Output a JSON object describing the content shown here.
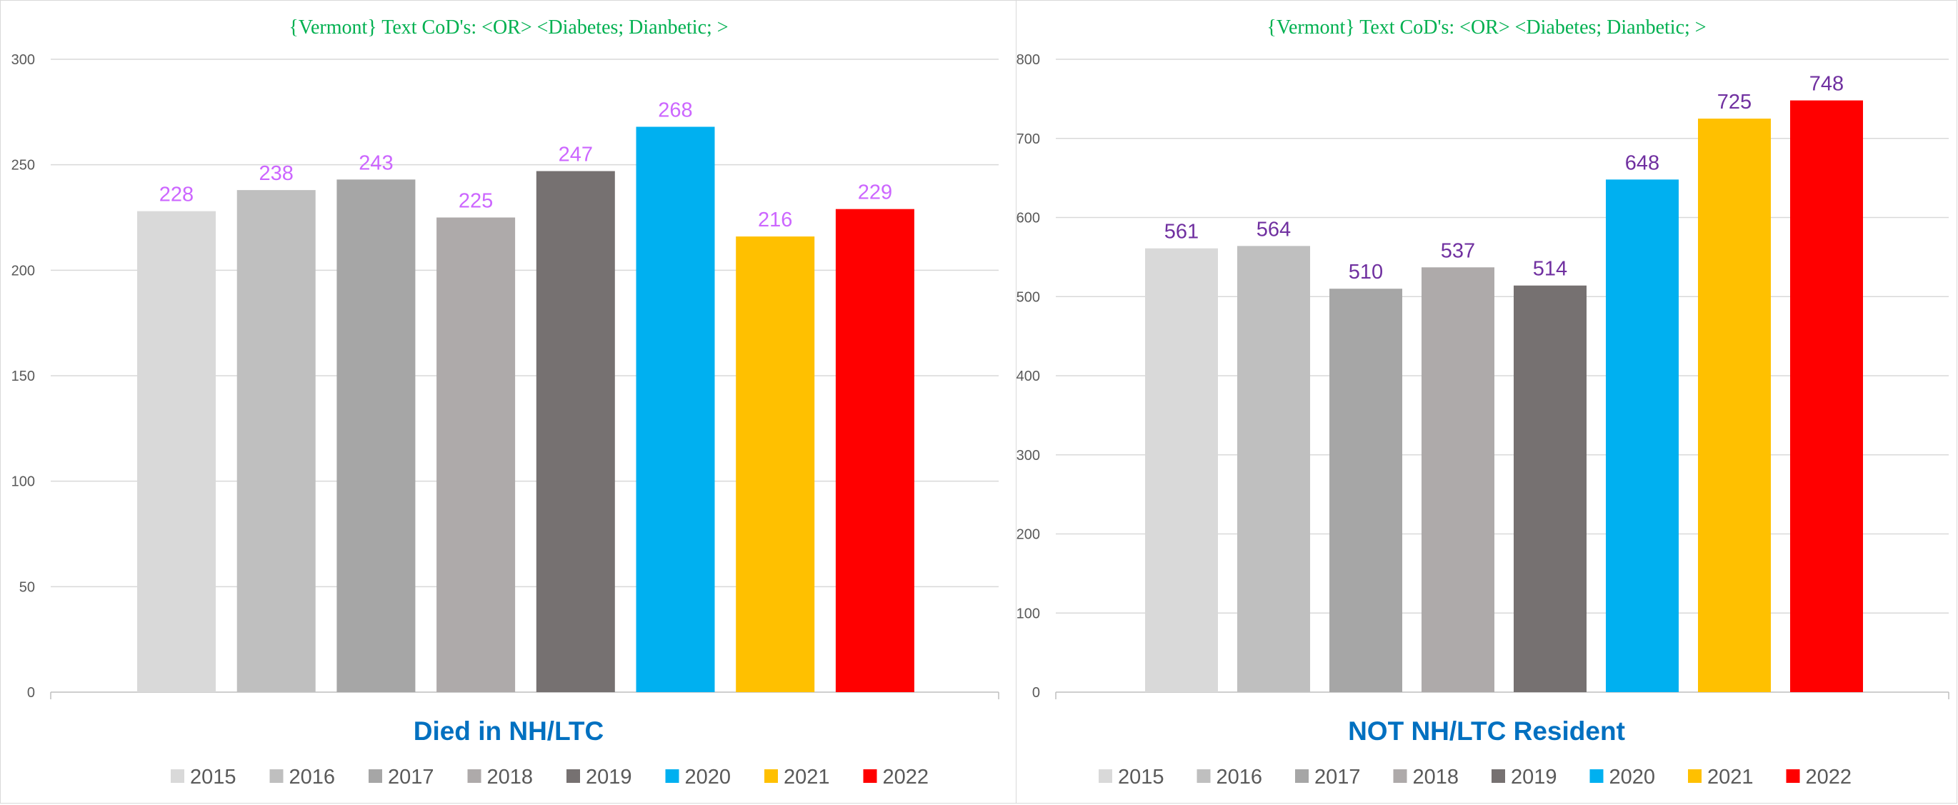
{
  "chart_data": [
    {
      "type": "bar",
      "title": "{Vermont}   Text CoD's: <OR> <Diabetes; Dianbetic; >",
      "xlabel": "Died  in NH/LTC",
      "ylabel": "",
      "ylim": [
        0,
        300
      ],
      "yticks": [
        "0",
        "50",
        "100",
        "150",
        "200",
        "250",
        "300"
      ],
      "grid": true,
      "legend_position": "bottom",
      "label_color": "#cc66ff",
      "series": [
        {
          "name": "2015",
          "value": 228,
          "color": "#d9d9d9"
        },
        {
          "name": "2016",
          "value": 238,
          "color": "#bfbfbf"
        },
        {
          "name": "2017",
          "value": 243,
          "color": "#a6a6a6"
        },
        {
          "name": "2018",
          "value": 225,
          "color": "#aeaaaa"
        },
        {
          "name": "2019",
          "value": 247,
          "color": "#767171"
        },
        {
          "name": "2020",
          "value": 268,
          "color": "#00b0f0"
        },
        {
          "name": "2021",
          "value": 216,
          "color": "#ffc000"
        },
        {
          "name": "2022",
          "value": 229,
          "color": "#ff0000"
        }
      ]
    },
    {
      "type": "bar",
      "title": "{Vermont}   Text CoD's: <OR> <Diabetes; Dianbetic; >",
      "xlabel": "NOT NH/LTC Resident",
      "ylabel": "",
      "ylim": [
        0,
        800
      ],
      "yticks": [
        "0",
        "100",
        "200",
        "300",
        "400",
        "500",
        "600",
        "700",
        "800"
      ],
      "grid": true,
      "legend_position": "bottom",
      "label_color": "#7030a0",
      "series": [
        {
          "name": "2015",
          "value": 561,
          "color": "#d9d9d9"
        },
        {
          "name": "2016",
          "value": 564,
          "color": "#bfbfbf"
        },
        {
          "name": "2017",
          "value": 510,
          "color": "#a6a6a6"
        },
        {
          "name": "2018",
          "value": 537,
          "color": "#aeaaaa"
        },
        {
          "name": "2019",
          "value": 514,
          "color": "#767171"
        },
        {
          "name": "2020",
          "value": 648,
          "color": "#00b0f0"
        },
        {
          "name": "2021",
          "value": 725,
          "color": "#ffc000"
        },
        {
          "name": "2022",
          "value": 748,
          "color": "#ff0000"
        }
      ]
    }
  ]
}
